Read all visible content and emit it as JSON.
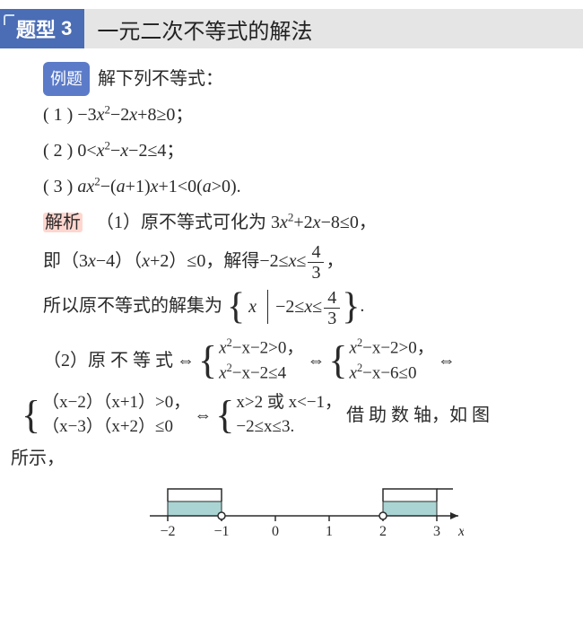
{
  "header": {
    "badge_prefix": "题型",
    "badge_num": "3",
    "title": "一元二次不等式的解法"
  },
  "example": {
    "label": "例题",
    "prompt": "解下列不等式：",
    "items": {
      "p1": "( 1 ) −3",
      "p1b": "−2",
      "p1c": "+8≥0；",
      "p2": "( 2 ) 0<",
      "p2b": "−",
      "p2c": "−2≤4；",
      "p3": "( 3 ) ",
      "p3b": "−(",
      "p3c": "+1)",
      "p3d": "+1<0(",
      "p3e": ">0)."
    }
  },
  "solution": {
    "label": "解析",
    "s1_a": "（1）原不等式可化为 3",
    "s1_b": "+2",
    "s1_c": "−8≤0，",
    "s2_a": "即（3",
    "s2_b": "−4）（",
    "s2_c": "+2）≤0，解得−2≤",
    "s2_d": "≤",
    "s2_e": "，",
    "s3_a": "所以原不等式的解集为",
    "s3_b": "−2≤",
    "s3_c": "≤",
    "s3_d": ".",
    "s4_a": "（2）原 不 等 式",
    "s4_b": "借 助 数 轴，如 图",
    "s5": "所示，",
    "frac": {
      "num": "4",
      "den": "3"
    },
    "sys1": {
      "r1a": "x",
      "r1b": "−x−2>0，",
      "r2a": "x",
      "r2b": "−x−2≤4"
    },
    "sys2": {
      "r1a": "x",
      "r1b": "−x−2>0，",
      "r2a": "x",
      "r2b": "−x−6≤0"
    },
    "sys3": {
      "r1": "（x−2）（x+1）>0，",
      "r2": "（x−3）（x+2）≤0"
    },
    "sys4": {
      "r1": "x>2 或 x<−1，",
      "r2": "−2≤x≤3."
    }
  },
  "numberline": {
    "ticks": [
      "−2",
      "−1",
      "0",
      "1",
      "2",
      "3"
    ],
    "axis_label": "x",
    "shade_color": "#a9d4d3",
    "line_color": "#2a2a2a",
    "open_points": [
      -1,
      2
    ],
    "shaded_ranges": [
      [
        -2,
        -1
      ],
      [
        2,
        3
      ]
    ],
    "tick_min": -2,
    "tick_max": 3,
    "font_size": 16
  }
}
